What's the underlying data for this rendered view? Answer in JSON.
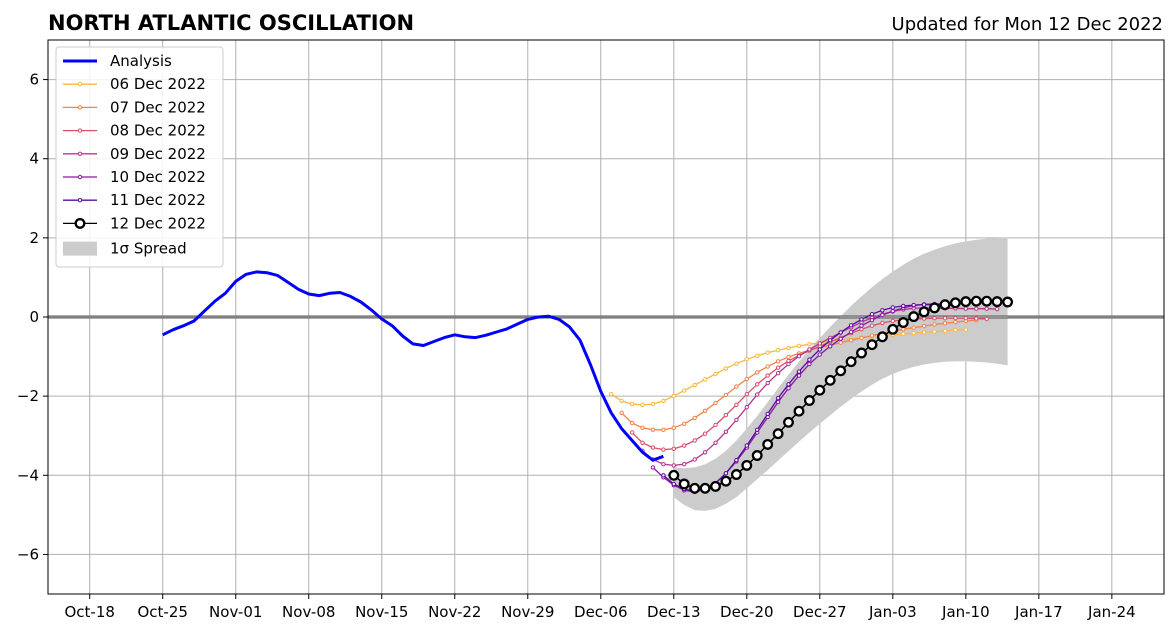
{
  "chart_data": {
    "type": "line",
    "title": "NORTH ATLANTIC OSCILLATION",
    "subtitle": "Updated for Mon 12 Dec 2022",
    "xlabel": "",
    "ylabel": "",
    "xlim": [
      "2022-10-14",
      "2023-01-29"
    ],
    "ylim": [
      -7,
      7
    ],
    "xticks": [
      {
        "date": "2022-10-18",
        "label": "Oct-18"
      },
      {
        "date": "2022-10-25",
        "label": "Oct-25"
      },
      {
        "date": "2022-11-01",
        "label": "Nov-01"
      },
      {
        "date": "2022-11-08",
        "label": "Nov-08"
      },
      {
        "date": "2022-11-15",
        "label": "Nov-15"
      },
      {
        "date": "2022-11-22",
        "label": "Nov-22"
      },
      {
        "date": "2022-11-29",
        "label": "Nov-29"
      },
      {
        "date": "2022-12-06",
        "label": "Dec-06"
      },
      {
        "date": "2022-12-13",
        "label": "Dec-13"
      },
      {
        "date": "2022-12-20",
        "label": "Dec-20"
      },
      {
        "date": "2022-12-27",
        "label": "Dec-27"
      },
      {
        "date": "2023-01-03",
        "label": "Jan-03"
      },
      {
        "date": "2023-01-10",
        "label": "Jan-10"
      },
      {
        "date": "2023-01-17",
        "label": "Jan-17"
      },
      {
        "date": "2023-01-24",
        "label": "Jan-24"
      }
    ],
    "yticks": [
      {
        "value": 6,
        "label": "6"
      },
      {
        "value": 4,
        "label": "4"
      },
      {
        "value": 2,
        "label": "2"
      },
      {
        "value": 0,
        "label": "0"
      },
      {
        "value": -2,
        "label": "−2"
      },
      {
        "value": -4,
        "label": "−4"
      },
      {
        "value": -6,
        "label": "−6"
      }
    ],
    "grid": true,
    "legend_position": "top-left",
    "analysis": {
      "name": "Analysis",
      "color": "#0000ff",
      "x": [
        "2022-10-25",
        "2022-10-26",
        "2022-10-27",
        "2022-10-28",
        "2022-10-29",
        "2022-10-30",
        "2022-10-31",
        "2022-11-01",
        "2022-11-02",
        "2022-11-03",
        "2022-11-04",
        "2022-11-05",
        "2022-11-06",
        "2022-11-07",
        "2022-11-08",
        "2022-11-09",
        "2022-11-10",
        "2022-11-11",
        "2022-11-12",
        "2022-11-13",
        "2022-11-14",
        "2022-11-15",
        "2022-11-16",
        "2022-11-17",
        "2022-11-18",
        "2022-11-19",
        "2022-11-20",
        "2022-11-21",
        "2022-11-22",
        "2022-11-23",
        "2022-11-24",
        "2022-11-25",
        "2022-11-26",
        "2022-11-27",
        "2022-11-28",
        "2022-11-29",
        "2022-11-30",
        "2022-12-01",
        "2022-12-02",
        "2022-12-03",
        "2022-12-04",
        "2022-12-05",
        "2022-12-06",
        "2022-12-07",
        "2022-12-08",
        "2022-12-09",
        "2022-12-10",
        "2022-12-11",
        "2022-12-12"
      ],
      "y": [
        -0.45,
        -0.32,
        -0.22,
        -0.1,
        0.15,
        0.4,
        0.6,
        0.9,
        1.08,
        1.14,
        1.12,
        1.05,
        0.88,
        0.7,
        0.58,
        0.54,
        0.6,
        0.62,
        0.52,
        0.38,
        0.18,
        -0.05,
        -0.22,
        -0.48,
        -0.68,
        -0.72,
        -0.62,
        -0.52,
        -0.45,
        -0.5,
        -0.52,
        -0.46,
        -0.38,
        -0.3,
        -0.18,
        -0.06,
        0.0,
        0.02,
        -0.06,
        -0.25,
        -0.58,
        -1.2,
        -1.88,
        -2.42,
        -2.82,
        -3.12,
        -3.42,
        -3.62,
        -3.52
      ]
    },
    "forecasts": [
      {
        "name": "06 Dec 2022",
        "color": "#fcb83d",
        "start": "2022-12-07",
        "y": [
          -1.95,
          -2.12,
          -2.2,
          -2.22,
          -2.2,
          -2.12,
          -2.0,
          -1.86,
          -1.72,
          -1.58,
          -1.44,
          -1.3,
          -1.18,
          -1.07,
          -0.98,
          -0.9,
          -0.84,
          -0.78,
          -0.73,
          -0.69,
          -0.65,
          -0.61,
          -0.58,
          -0.55,
          -0.52,
          -0.49,
          -0.47,
          -0.45,
          -0.43,
          -0.41,
          -0.39,
          -0.37,
          -0.35,
          -0.33,
          -0.32
        ]
      },
      {
        "name": "07 Dec 2022",
        "color": "#f0844a",
        "start": "2022-12-08",
        "y": [
          -2.42,
          -2.68,
          -2.8,
          -2.85,
          -2.85,
          -2.8,
          -2.7,
          -2.55,
          -2.37,
          -2.17,
          -1.97,
          -1.76,
          -1.57,
          -1.4,
          -1.25,
          -1.12,
          -1.01,
          -0.92,
          -0.84,
          -0.77,
          -0.71,
          -0.65,
          -0.59,
          -0.53,
          -0.47,
          -0.41,
          -0.36,
          -0.31,
          -0.27,
          -0.23,
          -0.19,
          -0.16,
          -0.13,
          -0.1,
          -0.08
        ]
      },
      {
        "name": "08 Dec 2022",
        "color": "#d9506b",
        "start": "2022-12-09",
        "y": [
          -2.92,
          -3.18,
          -3.3,
          -3.35,
          -3.33,
          -3.25,
          -3.12,
          -2.95,
          -2.73,
          -2.48,
          -2.22,
          -1.95,
          -1.7,
          -1.48,
          -1.28,
          -1.11,
          -0.97,
          -0.85,
          -0.74,
          -0.63,
          -0.52,
          -0.41,
          -0.31,
          -0.22,
          -0.15,
          -0.1,
          -0.07,
          -0.05,
          -0.04,
          -0.03,
          -0.03,
          -0.03,
          -0.03,
          -0.04,
          -0.05
        ]
      },
      {
        "name": "09 Dec 2022",
        "color": "#b5378e",
        "start": "2022-12-10",
        "y": [
          -3.38,
          -3.6,
          -3.72,
          -3.75,
          -3.72,
          -3.6,
          -3.42,
          -3.18,
          -2.9,
          -2.6,
          -2.28,
          -1.96,
          -1.67,
          -1.42,
          -1.19,
          -0.99,
          -0.82,
          -0.67,
          -0.53,
          -0.39,
          -0.26,
          -0.13,
          -0.02,
          0.07,
          0.14,
          0.19,
          0.22,
          0.23,
          0.23,
          0.22,
          0.22,
          0.21,
          0.21,
          0.21,
          0.2
        ]
      },
      {
        "name": "10 Dec 2022",
        "color": "#8b17a4",
        "start": "2022-12-11",
        "y": [
          -3.8,
          -4.05,
          -4.25,
          -4.38,
          -4.42,
          -4.35,
          -4.2,
          -3.95,
          -3.65,
          -3.3,
          -2.92,
          -2.53,
          -2.15,
          -1.8,
          -1.48,
          -1.19,
          -0.95,
          -0.74,
          -0.55,
          -0.38,
          -0.22,
          -0.08,
          0.05,
          0.15,
          0.23,
          0.29,
          0.32,
          0.33,
          0.33,
          0.32
        ]
      },
      {
        "name": "11 Dec 2022",
        "color": "#5b0aa1",
        "start": "2022-12-12",
        "y": [
          -4.0,
          -4.22,
          -4.35,
          -4.4,
          -4.35,
          -4.2,
          -3.95,
          -3.62,
          -3.25,
          -2.85,
          -2.45,
          -2.05,
          -1.7,
          -1.38,
          -1.08,
          -0.82,
          -0.59,
          -0.39,
          -0.21,
          -0.06,
          0.07,
          0.17,
          0.24,
          0.28,
          0.3,
          0.31,
          0.31,
          0.3,
          0.3
        ]
      },
      {
        "name": "12 Dec 2022",
        "color": "#000000",
        "start": "2022-12-13",
        "y": [
          -4.0,
          -4.22,
          -4.33,
          -4.33,
          -4.28,
          -4.15,
          -3.98,
          -3.75,
          -3.5,
          -3.22,
          -2.95,
          -2.66,
          -2.38,
          -2.11,
          -1.85,
          -1.6,
          -1.36,
          -1.13,
          -0.91,
          -0.7,
          -0.5,
          -0.31,
          -0.14,
          0.01,
          0.13,
          0.23,
          0.31,
          0.36,
          0.39,
          0.4,
          0.4,
          0.39,
          0.38
        ]
      }
    ],
    "spread": {
      "name": "1σ Spread",
      "color": "#cccccc",
      "start": "2022-12-13",
      "upper": [
        -3.8,
        -3.82,
        -3.8,
        -3.72,
        -3.58,
        -3.38,
        -3.12,
        -2.82,
        -2.5,
        -2.15,
        -1.8,
        -1.46,
        -1.13,
        -0.82,
        -0.53,
        -0.25,
        0.02,
        0.28,
        0.52,
        0.75,
        0.96,
        1.15,
        1.32,
        1.47,
        1.6,
        1.7,
        1.79,
        1.86,
        1.91,
        1.95,
        1.98,
        2.0,
        2.01
      ],
      "lower": [
        -4.55,
        -4.75,
        -4.88,
        -4.9,
        -4.85,
        -4.72,
        -4.55,
        -4.33,
        -4.1,
        -3.87,
        -3.63,
        -3.39,
        -3.15,
        -2.92,
        -2.7,
        -2.48,
        -2.27,
        -2.07,
        -1.88,
        -1.71,
        -1.56,
        -1.44,
        -1.34,
        -1.26,
        -1.2,
        -1.16,
        -1.13,
        -1.12,
        -1.12,
        -1.13,
        -1.15,
        -1.18,
        -1.22
      ]
    }
  }
}
